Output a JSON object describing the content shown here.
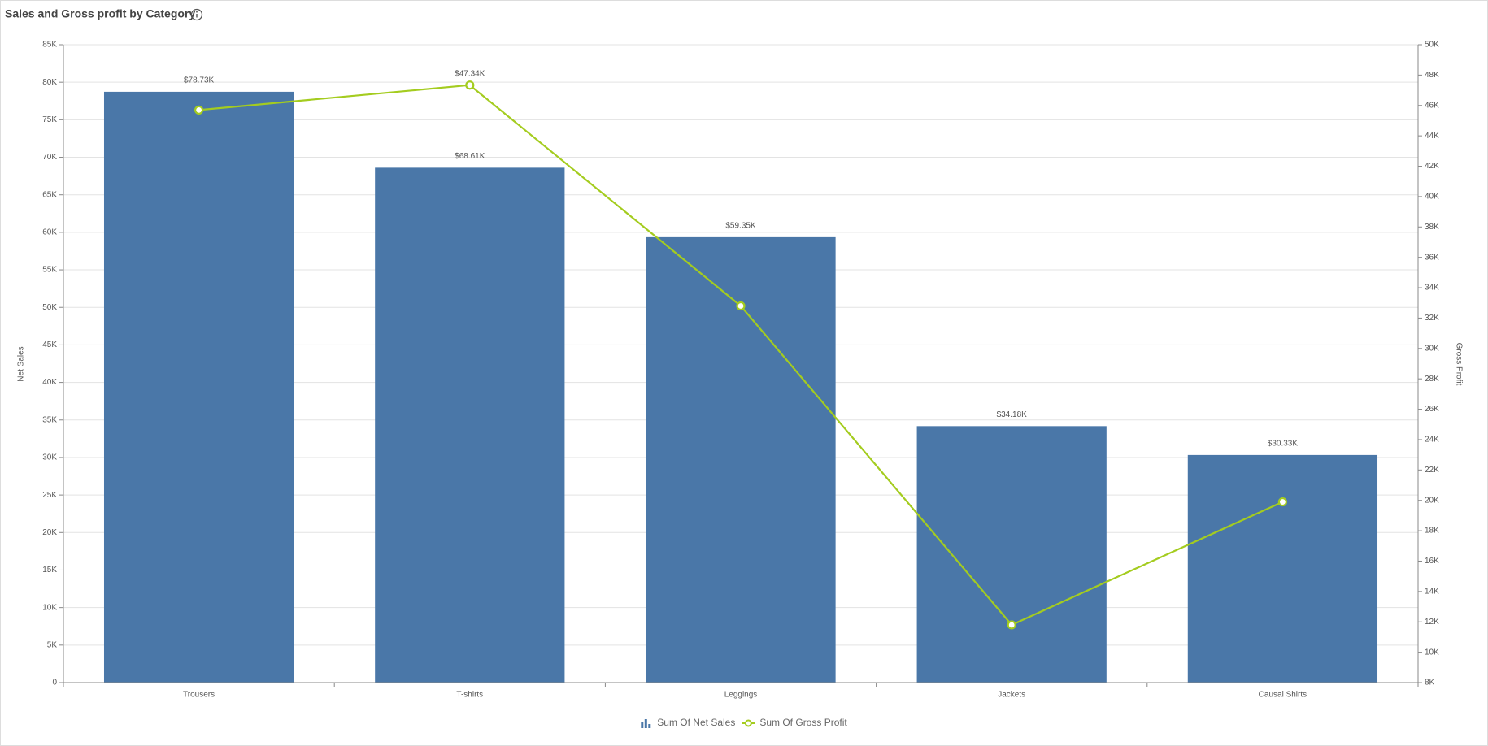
{
  "chart_data": {
    "type": "bar",
    "title": "Sales and Gross profit by Category",
    "y_label": "Net Sales",
    "y2_label": "Gross Profit",
    "categories": [
      "Trousers",
      "T-shirts",
      "Leggings",
      "Jackets",
      "Causal Shirts"
    ],
    "series": [
      {
        "name": "Sum Of Net Sales",
        "type": "bar",
        "color": "#4a77a8",
        "values": [
          78730,
          68610,
          59350,
          34180,
          30330
        ],
        "value_labels": [
          "$78.73K",
          "$68.61K",
          "$59.35K",
          "$34.18K",
          "$30.33K"
        ]
      },
      {
        "name": "Sum Of Gross Profit",
        "type": "line",
        "axis": "y2",
        "color": "#a4cc1f",
        "values": [
          45700,
          47340,
          32800,
          11800,
          19900
        ],
        "value_labels": [
          null,
          "$47.34K",
          null,
          null,
          null
        ]
      }
    ],
    "ylim": [
      0,
      85000
    ],
    "yticks": [
      0,
      {
        "value": 5000,
        "label": "5K"
      },
      {
        "value": 10000,
        "label": "10K"
      },
      {
        "value": 15000,
        "label": "15K"
      },
      {
        "value": 20000,
        "label": "20K"
      },
      {
        "value": 25000,
        "label": "25K"
      },
      {
        "value": 30000,
        "label": "30K"
      },
      {
        "value": 35000,
        "label": "35K"
      },
      {
        "value": 40000,
        "label": "40K"
      },
      {
        "value": 45000,
        "label": "45K"
      },
      {
        "value": 50000,
        "label": "50K"
      },
      {
        "value": 55000,
        "label": "55K"
      },
      {
        "value": 60000,
        "label": "60K"
      },
      {
        "value": 65000,
        "label": "65K"
      },
      {
        "value": 70000,
        "label": "70K"
      },
      {
        "value": 75000,
        "label": "75K"
      },
      {
        "value": 80000,
        "label": "80K"
      },
      {
        "value": 85000,
        "label": "85K"
      }
    ],
    "y2lim": [
      8000,
      50000
    ],
    "y2ticks": [
      {
        "value": 8000,
        "label": "8K"
      },
      {
        "value": 10000,
        "label": "10K"
      },
      {
        "value": 12000,
        "label": "12K"
      },
      {
        "value": 14000,
        "label": "14K"
      },
      {
        "value": 16000,
        "label": "16K"
      },
      {
        "value": 18000,
        "label": "18K"
      },
      {
        "value": 20000,
        "label": "20K"
      },
      {
        "value": 22000,
        "label": "22K"
      },
      {
        "value": 24000,
        "label": "24K"
      },
      {
        "value": 26000,
        "label": "26K"
      },
      {
        "value": 28000,
        "label": "28K"
      },
      {
        "value": 30000,
        "label": "30K"
      },
      {
        "value": 32000,
        "label": "32K"
      },
      {
        "value": 34000,
        "label": "34K"
      },
      {
        "value": 36000,
        "label": "36K"
      },
      {
        "value": 38000,
        "label": "38K"
      },
      {
        "value": 40000,
        "label": "40K"
      },
      {
        "value": 42000,
        "label": "42K"
      },
      {
        "value": 44000,
        "label": "44K"
      },
      {
        "value": 46000,
        "label": "46K"
      },
      {
        "value": 48000,
        "label": "48K"
      },
      {
        "value": 50000,
        "label": "50K"
      }
    ],
    "grid": true,
    "legend": "bottom"
  }
}
